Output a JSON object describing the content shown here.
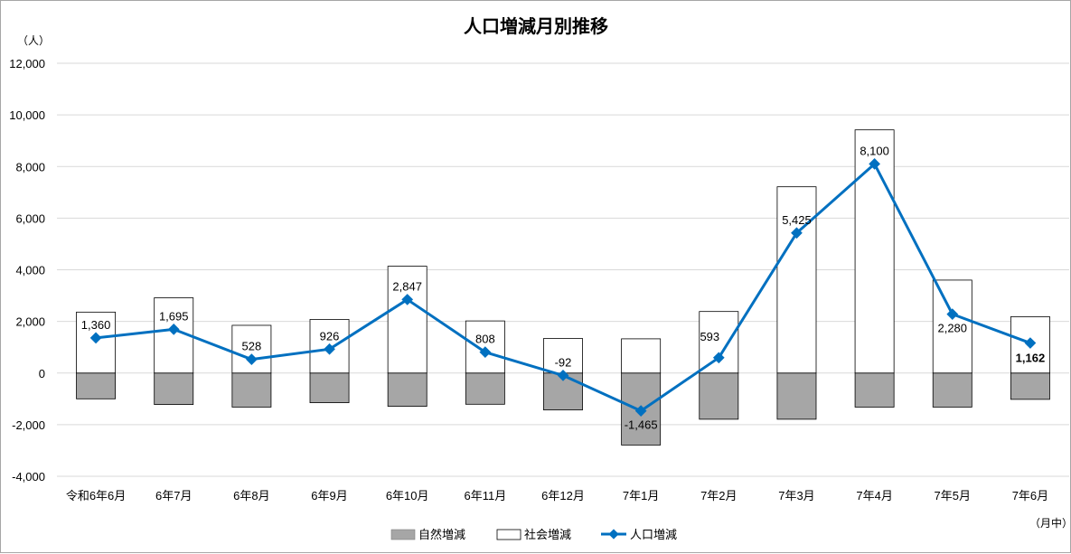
{
  "chart_data": {
    "type": "bar",
    "title": "人口増減月別推移",
    "ylabel": "（人）",
    "xlabel_note": "（月中）",
    "ylim": [
      -4000,
      12000
    ],
    "ytick_step": 2000,
    "grid": true,
    "legend_position": "bottom",
    "categories": [
      "令和6年6月",
      "6年7月",
      "6年8月",
      "6年9月",
      "6年10月",
      "6年11月",
      "6年12月",
      "7年1月",
      "7年2月",
      "7年3月",
      "7年4月",
      "7年5月",
      "7年6月"
    ],
    "series": [
      {
        "name": "自然増減",
        "kind": "bar",
        "color": "#a6a6a6",
        "values": [
          -1000,
          -1220,
          -1320,
          -1150,
          -1290,
          -1210,
          -1430,
          -2790,
          -1790,
          -1790,
          -1320,
          -1320,
          -1020
        ]
      },
      {
        "name": "社会増減",
        "kind": "bar",
        "color": "#ffffff",
        "values": [
          2360,
          2915,
          1848,
          2076,
          4137,
          2018,
          1338,
          1325,
          2383,
          7215,
          9420,
          3600,
          2182
        ]
      },
      {
        "name": "人口増減",
        "kind": "line",
        "color": "#0070c0",
        "values": [
          1360,
          1695,
          528,
          926,
          2847,
          808,
          -92,
          -1465,
          593,
          5425,
          8100,
          2280,
          1162
        ]
      }
    ],
    "data_labels": [
      "1,360",
      "1,695",
      "528",
      "926",
      "2,847",
      "808",
      "-92",
      "-1,465",
      "593",
      "5,425",
      "8,100",
      "2,280",
      "1,162"
    ]
  }
}
